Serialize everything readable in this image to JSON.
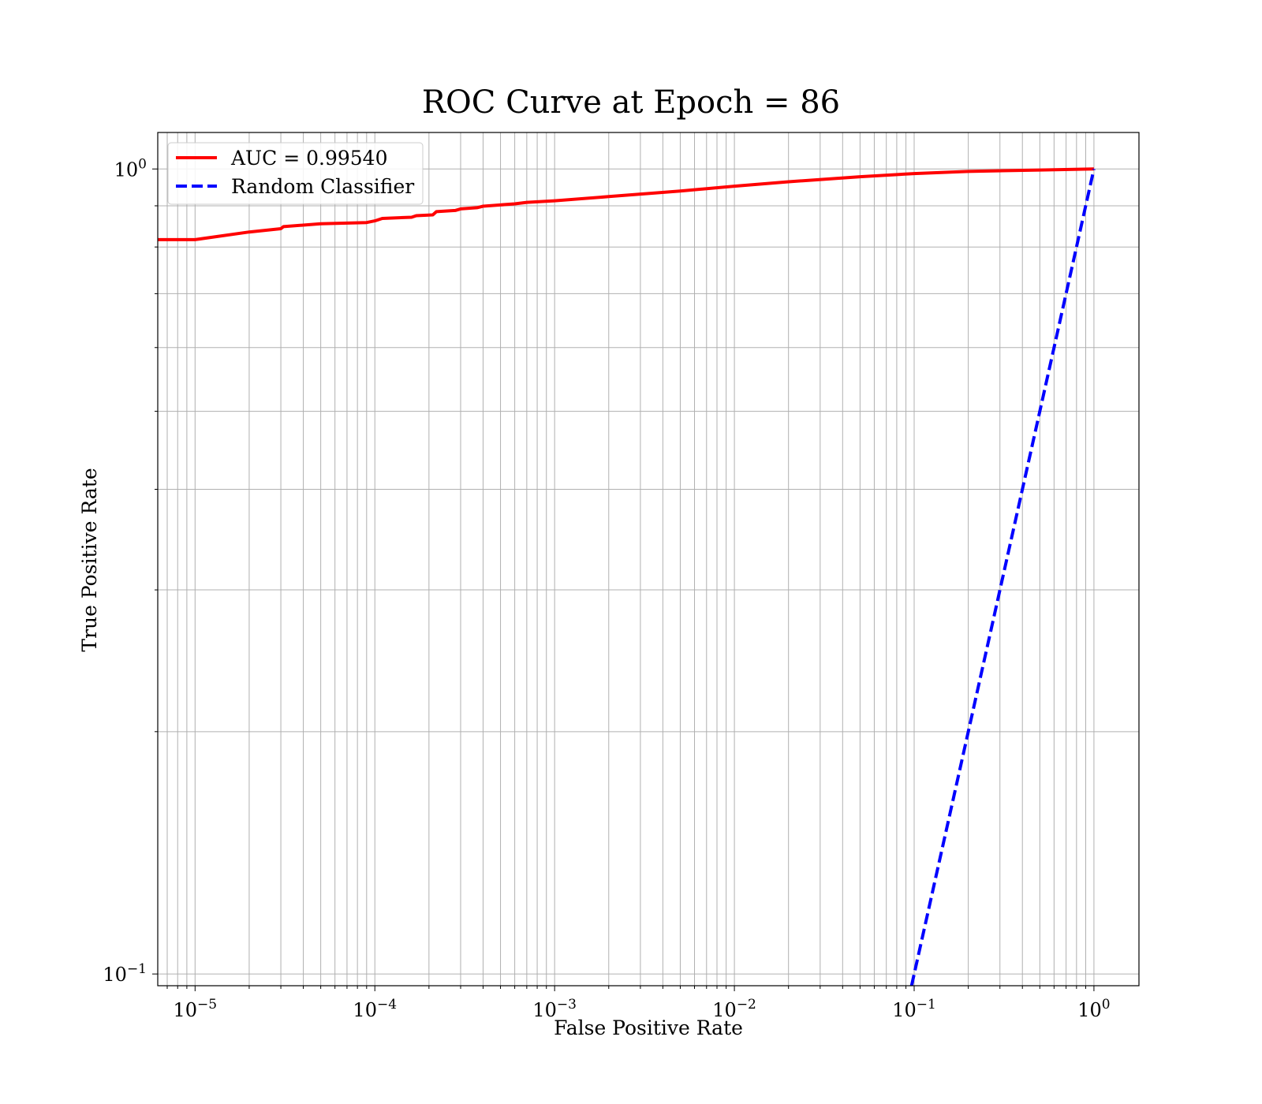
{
  "chart_data": {
    "type": "line",
    "title": "ROC Curve at Epoch = 86",
    "xlabel": "False Positive Rate",
    "ylabel": "True Positive Rate",
    "xscale": "log",
    "yscale": "log",
    "xlim": [
      6.2e-06,
      1.78
    ],
    "ylim": [
      0.0967,
      1.11
    ],
    "grid": true,
    "grid_minor": true,
    "legend_position": "upper-left",
    "x_ticks": [
      {
        "base": "10",
        "exp": "−5",
        "value": 1e-05
      },
      {
        "base": "10",
        "exp": "−4",
        "value": 0.0001
      },
      {
        "base": "10",
        "exp": "−3",
        "value": 0.001
      },
      {
        "base": "10",
        "exp": "−2",
        "value": 0.01
      },
      {
        "base": "10",
        "exp": "−1",
        "value": 0.1
      },
      {
        "base": "10",
        "exp": "0",
        "value": 1
      }
    ],
    "y_ticks": [
      {
        "base": "10",
        "exp": "0",
        "value": 1
      },
      {
        "base": "10",
        "exp": "−1",
        "value": 0.1
      }
    ],
    "series": [
      {
        "name": "AUC = 0.99540",
        "color": "#ff0000",
        "style": "solid",
        "x": [
          6.2e-06,
          1e-05,
          2e-05,
          3e-05,
          3.1e-05,
          5e-05,
          9e-05,
          0.0001,
          0.00011,
          0.00016,
          0.00017,
          0.00021,
          0.00022,
          0.00028,
          0.0003,
          0.00037,
          0.0004,
          0.0006,
          0.0007,
          0.001,
          0.002,
          0.005,
          0.01,
          0.02,
          0.05,
          0.1,
          0.2,
          0.5,
          1
        ],
        "y": [
          0.817,
          0.817,
          0.835,
          0.843,
          0.848,
          0.855,
          0.858,
          0.862,
          0.868,
          0.871,
          0.875,
          0.877,
          0.885,
          0.888,
          0.892,
          0.895,
          0.899,
          0.905,
          0.909,
          0.913,
          0.924,
          0.939,
          0.952,
          0.964,
          0.978,
          0.987,
          0.993,
          0.997,
          1.0
        ]
      },
      {
        "name": "Random Classifier",
        "color": "#0000ff",
        "style": "dashed",
        "x": [
          0.0967,
          1
        ],
        "y": [
          0.0967,
          1
        ]
      }
    ]
  }
}
